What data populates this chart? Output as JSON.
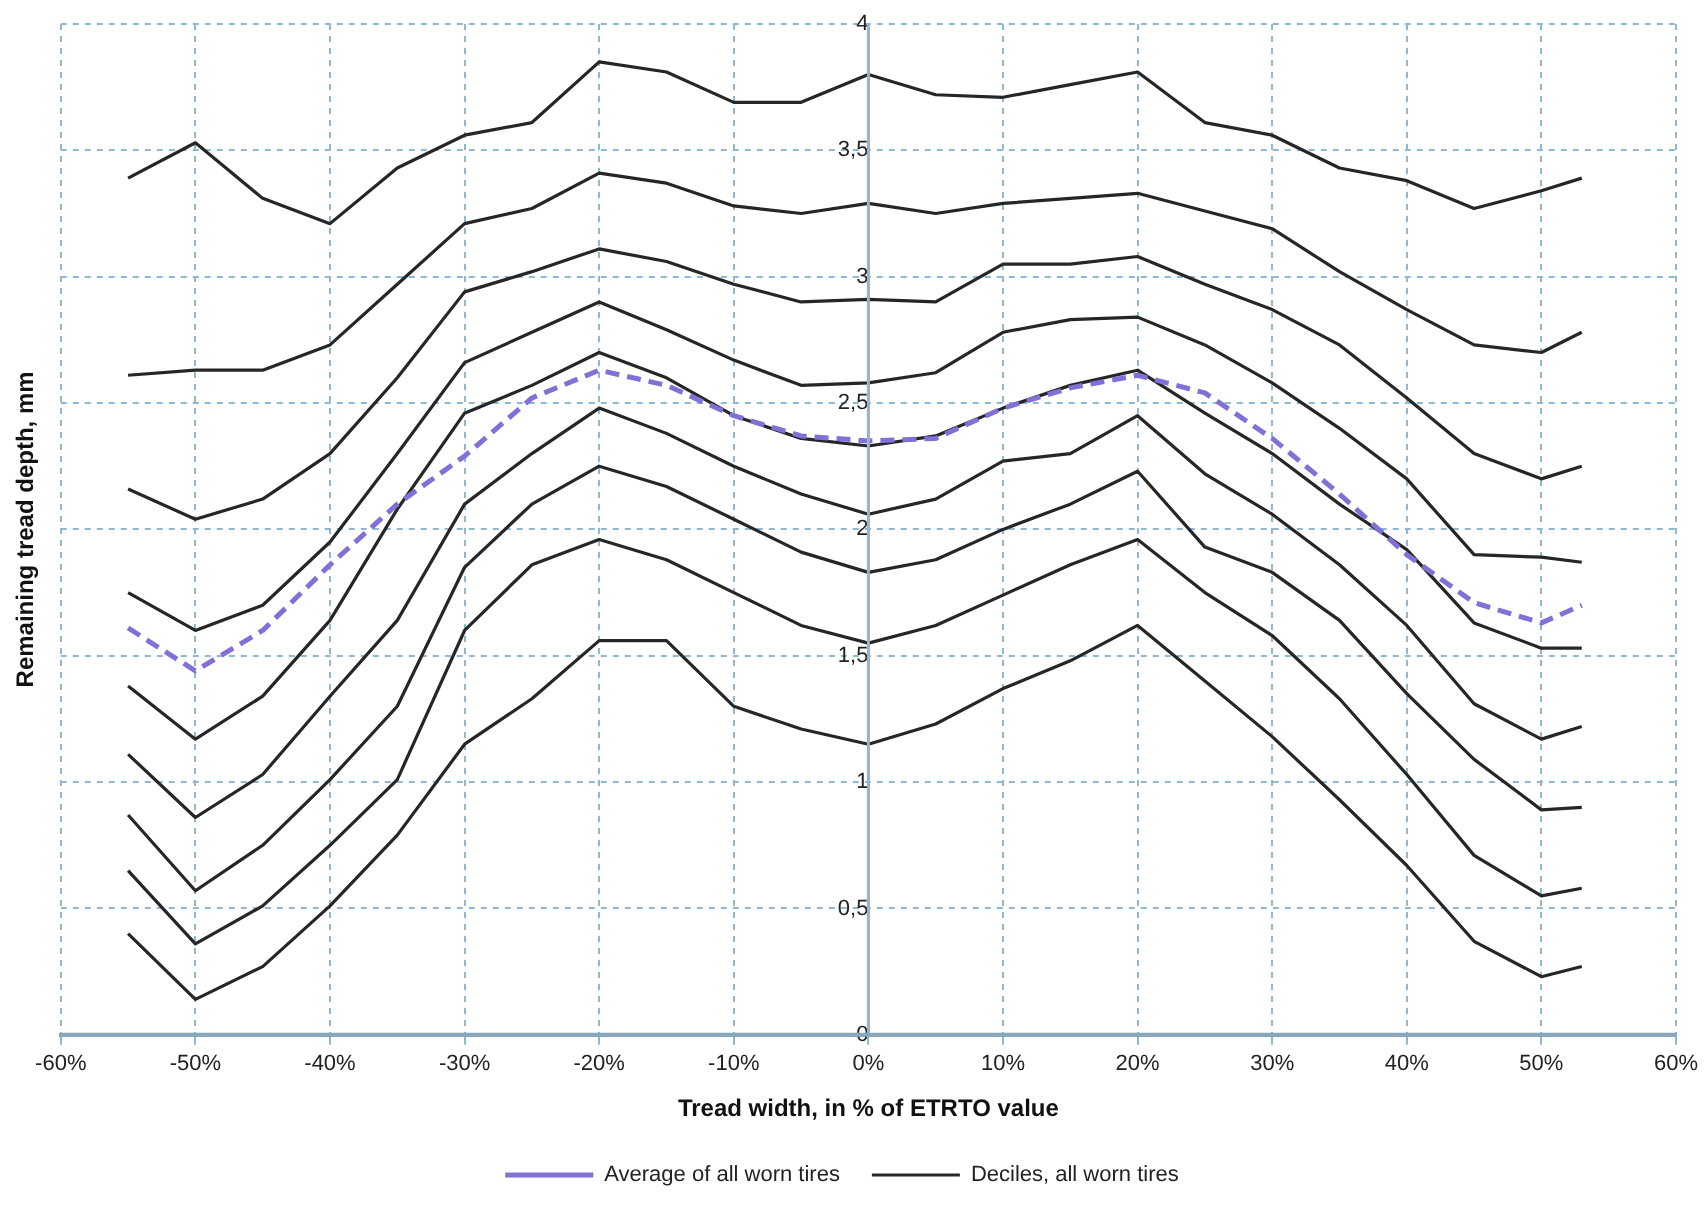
{
  "chart_data": {
    "type": "line",
    "xlabel": "Tread width, in % of ETRTO value",
    "ylabel": "Remaining tread depth, mm",
    "x": [
      -55,
      -50,
      -45,
      -40,
      -35,
      -30,
      -25,
      -20,
      -15,
      -10,
      -5,
      0,
      5,
      10,
      15,
      20,
      25,
      30,
      35,
      40,
      45,
      50,
      53
    ],
    "xlim": [
      -60,
      60
    ],
    "xticks": [
      {
        "value": -60,
        "label": "-60%"
      },
      {
        "value": -50,
        "label": "-50%"
      },
      {
        "value": -40,
        "label": "-40%"
      },
      {
        "value": -30,
        "label": "-30%"
      },
      {
        "value": -20,
        "label": "-20%"
      },
      {
        "value": -10,
        "label": "-10%"
      },
      {
        "value": 0,
        "label": "0%"
      },
      {
        "value": 10,
        "label": "10%"
      },
      {
        "value": 20,
        "label": "20%"
      },
      {
        "value": 30,
        "label": "30%"
      },
      {
        "value": 40,
        "label": "40%"
      },
      {
        "value": 50,
        "label": "50%"
      },
      {
        "value": 60,
        "label": "60%"
      }
    ],
    "ylim": [
      0,
      4
    ],
    "yticks": [
      0,
      {
        "value": 0.5,
        "label": "0,5"
      },
      1,
      {
        "value": 1.5,
        "label": "1,5"
      },
      2,
      {
        "value": 2.5,
        "label": "2,5"
      },
      3,
      {
        "value": 3.5,
        "label": "3,5"
      },
      4
    ],
    "grid": true,
    "legend": "bottom",
    "marker": "none",
    "line_style": "solid",
    "series": [
      {
        "name": "Average of all worn tires",
        "color": "#8070d8",
        "line_style": "dashed",
        "values": [
          1.61,
          1.44,
          1.6,
          1.86,
          2.1,
          2.29,
          2.52,
          2.63,
          2.57,
          2.45,
          2.37,
          2.35,
          2.36,
          2.48,
          2.56,
          2.61,
          2.54,
          2.36,
          2.14,
          1.9,
          1.71,
          1.63,
          1.7
        ]
      },
      {
        "name": "Deciles, all worn tires",
        "color": "#262626",
        "values": [
          0.4,
          0.14,
          0.27,
          0.51,
          0.79,
          1.15,
          1.33,
          1.56,
          1.56,
          1.3,
          1.21,
          1.15,
          1.23,
          1.37,
          1.48,
          1.62,
          1.4,
          1.18,
          0.93,
          0.67,
          0.37,
          0.23,
          0.27
        ]
      },
      {
        "color": "#262626",
        "values": [
          0.65,
          0.36,
          0.51,
          0.75,
          1.01,
          1.6,
          1.86,
          1.96,
          1.88,
          1.75,
          1.62,
          1.55,
          1.62,
          1.74,
          1.86,
          1.96,
          1.75,
          1.58,
          1.33,
          1.03,
          0.71,
          0.55,
          0.58
        ]
      },
      {
        "color": "#262626",
        "values": [
          0.87,
          0.57,
          0.75,
          1.01,
          1.3,
          1.85,
          2.1,
          2.25,
          2.17,
          2.04,
          1.91,
          1.83,
          1.88,
          2.0,
          2.1,
          2.23,
          1.93,
          1.83,
          1.64,
          1.35,
          1.09,
          0.89,
          0.9
        ]
      },
      {
        "color": "#262626",
        "values": [
          1.11,
          0.86,
          1.03,
          1.34,
          1.64,
          2.1,
          2.3,
          2.48,
          2.38,
          2.25,
          2.14,
          2.06,
          2.12,
          2.27,
          2.3,
          2.45,
          2.22,
          2.06,
          1.86,
          1.62,
          1.31,
          1.17,
          1.22
        ]
      },
      {
        "color": "#262626",
        "values": [
          1.38,
          1.17,
          1.34,
          1.64,
          2.08,
          2.46,
          2.57,
          2.7,
          2.6,
          2.45,
          2.36,
          2.33,
          2.37,
          2.48,
          2.57,
          2.63,
          2.46,
          2.3,
          2.1,
          1.92,
          1.63,
          1.53,
          1.53
        ]
      },
      {
        "color": "#262626",
        "values": [
          1.75,
          1.6,
          1.7,
          1.95,
          2.3,
          2.66,
          2.78,
          2.9,
          2.79,
          2.67,
          2.57,
          2.58,
          2.62,
          2.78,
          2.83,
          2.84,
          2.73,
          2.58,
          2.4,
          2.2,
          1.9,
          1.89,
          1.87
        ]
      },
      {
        "color": "#262626",
        "values": [
          2.16,
          2.04,
          2.12,
          2.3,
          2.6,
          2.94,
          3.02,
          3.11,
          3.06,
          2.97,
          2.9,
          2.91,
          2.9,
          3.05,
          3.05,
          3.08,
          2.97,
          2.87,
          2.73,
          2.52,
          2.3,
          2.2,
          2.25
        ]
      },
      {
        "color": "#262626",
        "values": [
          2.61,
          2.63,
          2.63,
          2.73,
          2.97,
          3.21,
          3.27,
          3.41,
          3.37,
          3.28,
          3.25,
          3.29,
          3.25,
          3.29,
          3.31,
          3.33,
          3.26,
          3.19,
          3.02,
          2.87,
          2.73,
          2.7,
          2.78
        ]
      },
      {
        "color": "#262626",
        "values": [
          3.39,
          3.53,
          3.31,
          3.21,
          3.43,
          3.56,
          3.61,
          3.85,
          3.81,
          3.69,
          3.69,
          3.8,
          3.72,
          3.71,
          3.76,
          3.81,
          3.61,
          3.56,
          3.43,
          3.38,
          3.27,
          3.34,
          3.39
        ]
      }
    ]
  }
}
